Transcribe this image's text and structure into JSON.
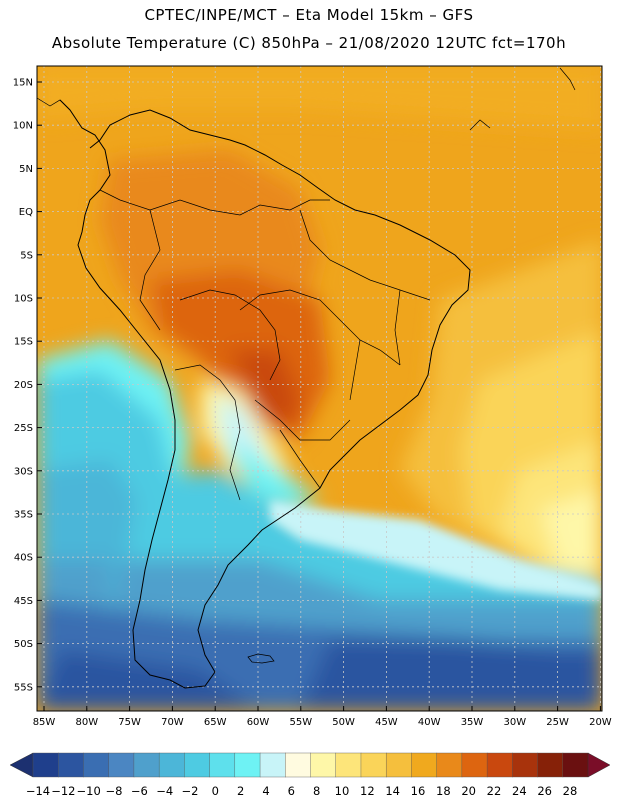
{
  "header": {
    "line1": "CPTEC/INPE/MCT –  Eta Model 15km – GFS",
    "line2": "Absolute Temperature (C) 850hPa – 21/08/2020 12UTC fct=170h"
  },
  "map": {
    "lat_labels": [
      "15N",
      "10N",
      "5N",
      "EQ",
      "5S",
      "10S",
      "15S",
      "20S",
      "25S",
      "30S",
      "35S",
      "40S",
      "45S",
      "50S",
      "55S"
    ],
    "lon_labels": [
      "85W",
      "80W",
      "75W",
      "70W",
      "65W",
      "60W",
      "55W",
      "50W",
      "45W",
      "40W",
      "35W",
      "30W",
      "25W",
      "20W"
    ]
  },
  "colorbar": {
    "labels": [
      "-14",
      "-12",
      "-10",
      "-8",
      "-6",
      "-4",
      "-2",
      "0",
      "2",
      "4",
      "6",
      "8",
      "10",
      "12",
      "14",
      "16",
      "18",
      "20",
      "22",
      "24",
      "26",
      "28"
    ],
    "colors": [
      "#1f3f8c",
      "#2c55a0",
      "#3a6eb2",
      "#4b86c2",
      "#4fa0cc",
      "#4cb6d8",
      "#4ecbe2",
      "#5ee0ec",
      "#6ef2f4",
      "#c8f4f8",
      "#fffbe0",
      "#fef7a8",
      "#fde57a",
      "#fad459",
      "#f5bf3d",
      "#f0a91e",
      "#e9891a",
      "#dd6510",
      "#c9480e",
      "#a8330c",
      "#862108",
      "#6a1010"
    ],
    "left_color": "#1c3070",
    "right_color": "#7a0d28"
  }
}
